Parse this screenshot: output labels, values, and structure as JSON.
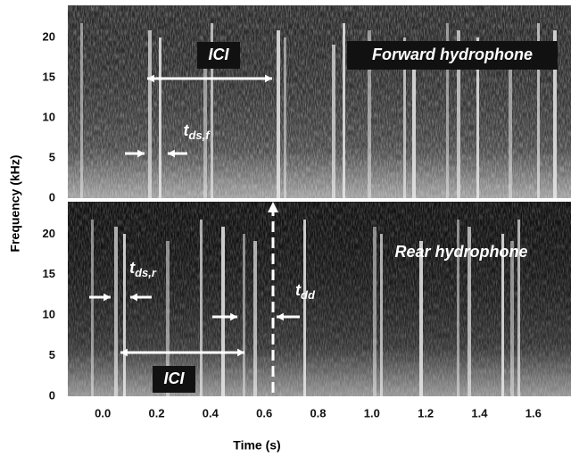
{
  "chart_data": {
    "type": "spectrogram",
    "xlabel": "Time (s)",
    "ylabel": "Frequency (kHz)",
    "xlim": [
      -0.13,
      1.74
    ],
    "xticks": [
      {
        "value": 0,
        "label": "0.0"
      },
      0.2,
      0.4,
      0.6,
      0.8,
      {
        "value": 1,
        "label": "1.0"
      },
      1.2,
      1.4,
      1.6
    ],
    "panels": [
      {
        "label": "Forward hydrophone",
        "ylim": [
          0,
          24
        ],
        "yticks": [
          0,
          5,
          10,
          15,
          20
        ],
        "annotations": [
          {
            "text": "ICI"
          },
          {
            "text": "t",
            "subscript": "ds,f"
          }
        ]
      },
      {
        "label": "Rear hydrophone",
        "ylim": [
          0,
          24
        ],
        "yticks": [
          0,
          5,
          10,
          15,
          20
        ],
        "annotations": [
          {
            "text": "t",
            "subscript": "ds,r"
          },
          {
            "text": "t",
            "subscript": "dd"
          },
          {
            "text": "ICI"
          }
        ]
      }
    ]
  }
}
